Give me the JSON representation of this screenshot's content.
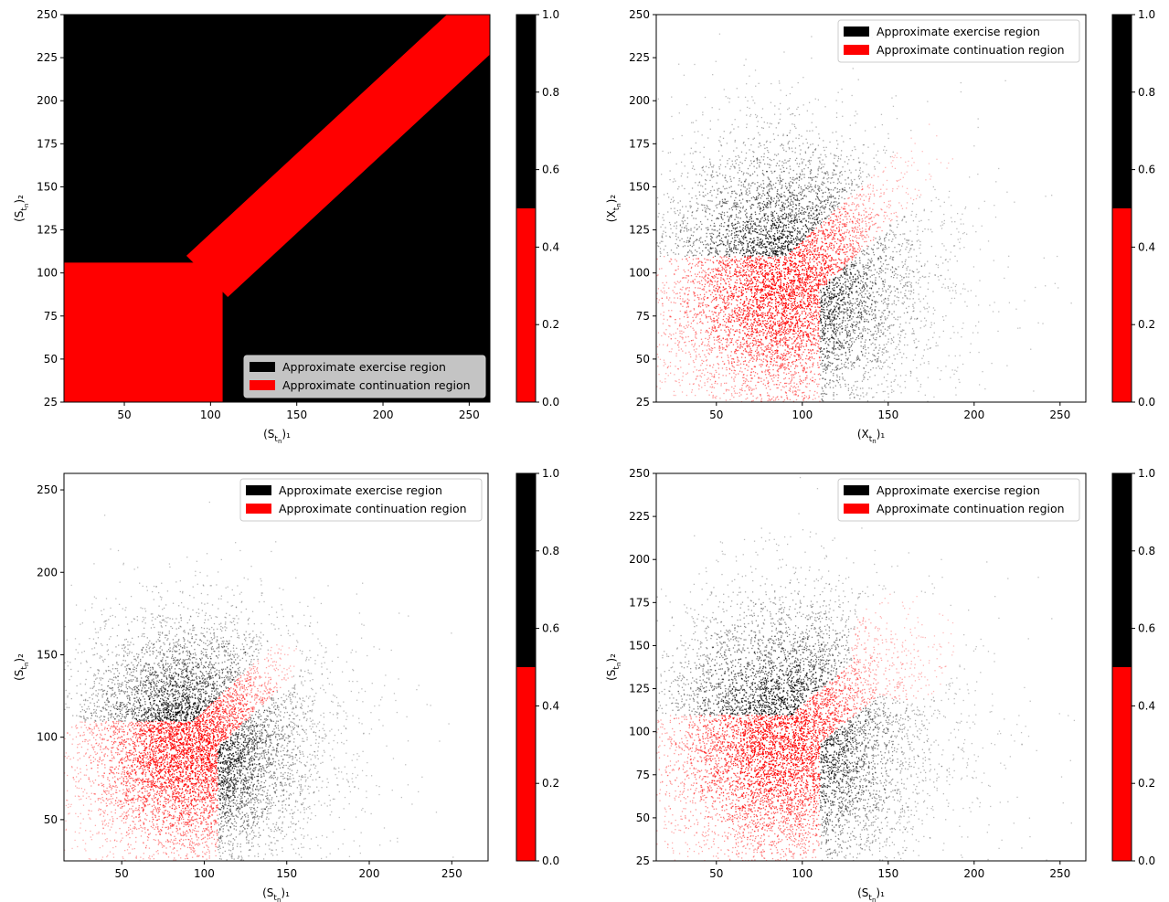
{
  "legend_entries": {
    "exercise": "Approximate exercise region",
    "continuation": "Approximate continuation region"
  },
  "colors": {
    "exercise": "#000000",
    "continuation": "#ff0000"
  },
  "colorbar": {
    "ticks": [
      "0.0",
      "0.2",
      "0.4",
      "0.6",
      "0.8",
      "1.0"
    ],
    "range": [
      0,
      1
    ],
    "split": 0.5,
    "colors": [
      "#ff0000",
      "#000000"
    ]
  },
  "chart_data": [
    {
      "type": "heatmap",
      "title": "",
      "xlabel": "(S",
      "xlabel_sub": "t",
      "xlabel_subsub": "n",
      "xlabel_tail": ")₁",
      "ylabel": "(S",
      "ylabel_sub": "t",
      "ylabel_subsub": "n",
      "ylabel_tail": ")₂",
      "xlim": [
        15,
        262
      ],
      "ylim": [
        25,
        250
      ],
      "xticks": [
        50,
        100,
        150,
        200,
        250
      ],
      "yticks": [
        25,
        50,
        75,
        100,
        125,
        150,
        175,
        200,
        225,
        250
      ],
      "grid": false,
      "legend": "lower-right",
      "regions": {
        "continuation_box": {
          "x": [
            15,
            107
          ],
          "y": [
            25,
            106
          ]
        },
        "continuation_band": {
          "from": [
            98,
            98
          ],
          "to": [
            262,
            250
          ],
          "half_width_below": 12,
          "half_width_above": 12
        }
      }
    },
    {
      "type": "scatter",
      "title": "",
      "xlabel": "(X",
      "xlabel_sub": "t",
      "xlabel_subsub": "n",
      "xlabel_tail": ")₁",
      "ylabel": "(X",
      "ylabel_sub": "t",
      "ylabel_subsub": "n",
      "ylabel_tail": ")₂",
      "xlim": [
        15,
        265
      ],
      "ylim": [
        25,
        250
      ],
      "xticks": [
        50,
        100,
        150,
        200,
        250
      ],
      "yticks": [
        25,
        50,
        75,
        100,
        125,
        150,
        175,
        200,
        225,
        250
      ],
      "grid": false,
      "legend": "top-right",
      "cloud": {
        "center": [
          88,
          95
        ],
        "spread": [
          38,
          42
        ]
      },
      "continuation": {
        "box_x_max": 110,
        "box_y_max": 110,
        "band_to": [
          185,
          180
        ],
        "band_half_width": 14
      }
    },
    {
      "type": "scatter",
      "title": "",
      "xlabel": "(S",
      "xlabel_sub": "t",
      "xlabel_subsub": "n",
      "xlabel_tail": ")₁",
      "ylabel": "(S",
      "ylabel_sub": "t",
      "ylabel_subsub": "n",
      "ylabel_tail": ")₂",
      "xlim": [
        15,
        272
      ],
      "ylim": [
        25,
        260
      ],
      "xticks": [
        50,
        100,
        150,
        200,
        250
      ],
      "yticks": [
        50,
        100,
        150,
        200,
        250
      ],
      "grid": false,
      "legend": "top-right",
      "cloud": {
        "center": [
          90,
          95
        ],
        "spread": [
          35,
          38
        ]
      },
      "continuation": {
        "box_x_max": 108,
        "box_y_max": 110,
        "band_to": [
          148,
          147
        ],
        "band_half_width": 11
      }
    },
    {
      "type": "scatter",
      "title": "",
      "xlabel": "(S",
      "xlabel_sub": "t",
      "xlabel_subsub": "n",
      "xlabel_tail": ")₁",
      "ylabel": "(S",
      "ylabel_sub": "t",
      "ylabel_subsub": "n",
      "ylabel_tail": ")₂",
      "xlim": [
        15,
        265
      ],
      "ylim": [
        25,
        250
      ],
      "xticks": [
        50,
        100,
        150,
        200,
        250
      ],
      "yticks": [
        25,
        50,
        75,
        100,
        125,
        150,
        175,
        200,
        225,
        250
      ],
      "grid": false,
      "legend": "top-right",
      "cloud": {
        "center": [
          88,
          95
        ],
        "spread": [
          38,
          42
        ]
      },
      "continuation": {
        "box_x_max": 110,
        "box_y_max": 110,
        "lobe_center": [
          160,
          150
        ],
        "lobe_radius": 32
      }
    }
  ]
}
